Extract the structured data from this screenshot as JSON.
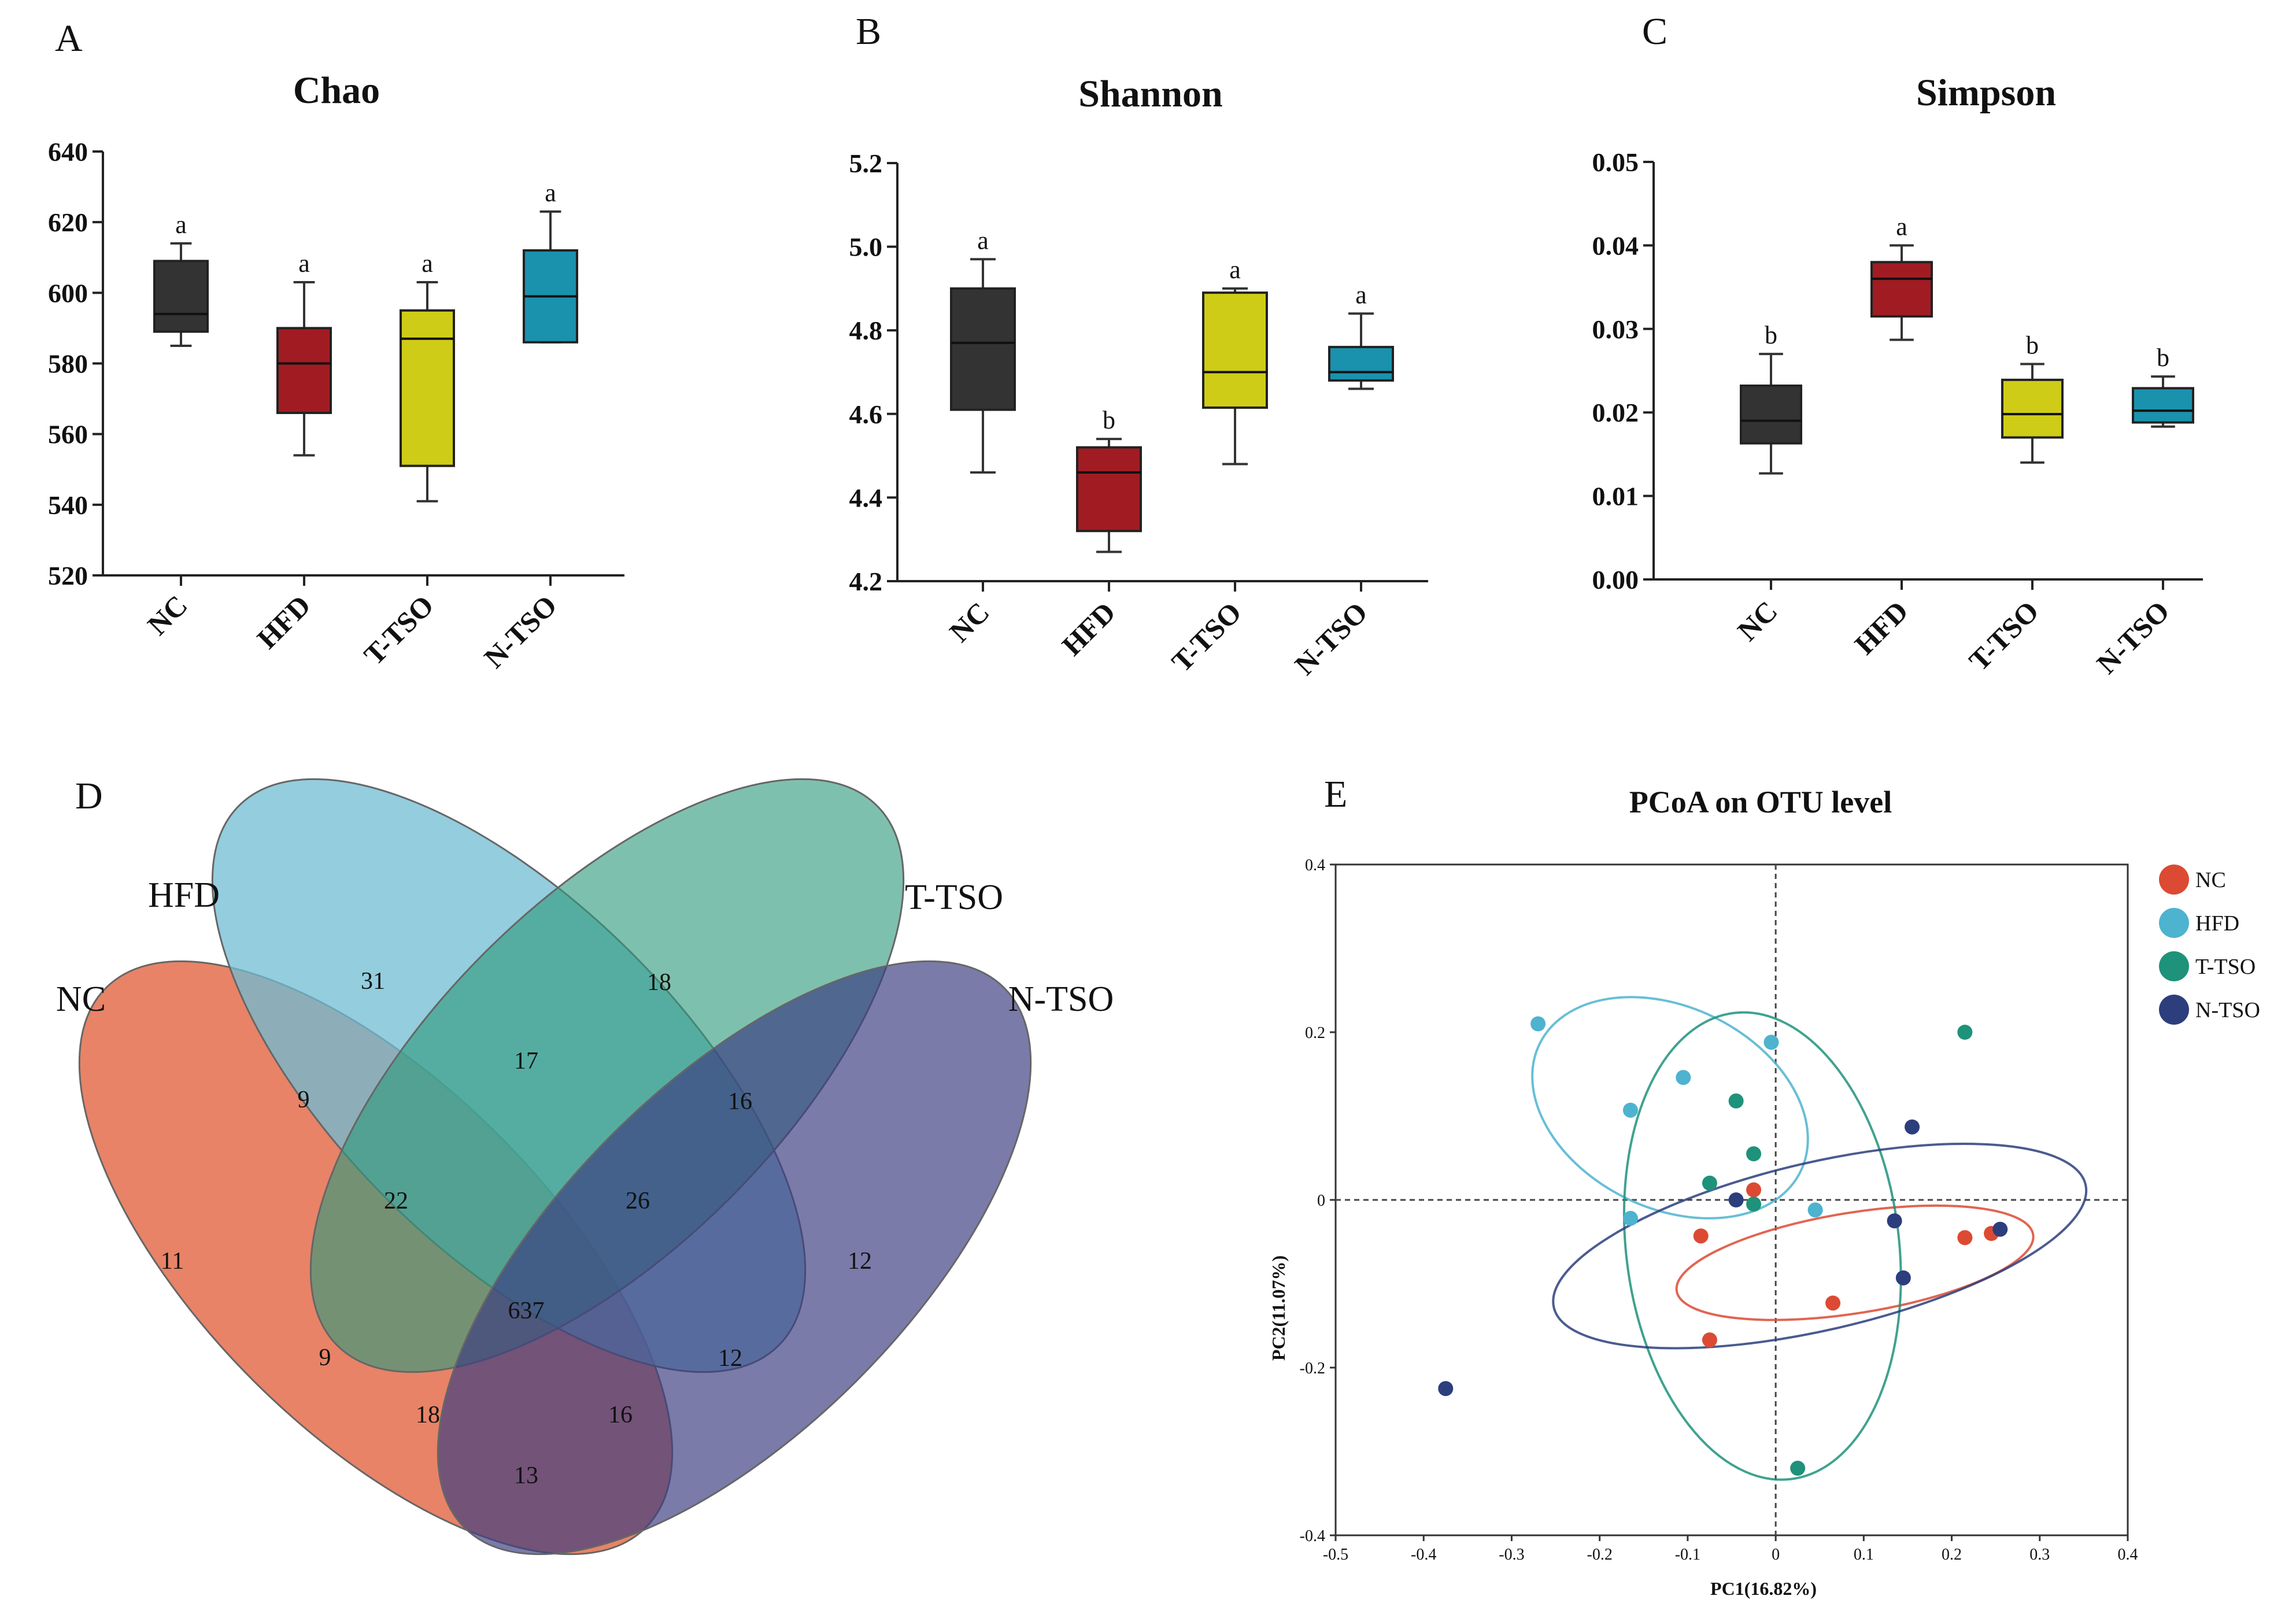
{
  "chart_data": [
    {
      "panel": "A",
      "type": "box",
      "title": "Chao",
      "categories": [
        "NC",
        "HFD",
        "T-TSO",
        "N-TSO"
      ],
      "ylim": [
        520,
        640
      ],
      "yticks": [
        520,
        540,
        560,
        580,
        600,
        620,
        640
      ],
      "boxes": [
        {
          "min": 585,
          "q1": 589,
          "median": 594,
          "q3": 609,
          "max": 614,
          "color": "#333333",
          "sig": "a"
        },
        {
          "min": 554,
          "q1": 566,
          "median": 580,
          "q3": 590,
          "max": 603,
          "color": "#a01c22",
          "sig": "a"
        },
        {
          "min": 541,
          "q1": 551,
          "median": 587,
          "q3": 595,
          "max": 603,
          "color": "#cfcc17",
          "sig": "a"
        },
        {
          "min": 586,
          "q1": 586,
          "median": 599,
          "q3": 612,
          "max": 623,
          "color": "#1a92ad",
          "sig": "a"
        }
      ]
    },
    {
      "panel": "B",
      "type": "box",
      "title": "Shannon",
      "categories": [
        "NC",
        "HFD",
        "T-TSO",
        "N-TSO"
      ],
      "ylim": [
        4.2,
        5.2
      ],
      "yticks": [
        "4.2",
        "4.4",
        "4.6",
        "4.8",
        "5.0",
        "5.2"
      ],
      "boxes": [
        {
          "min": 4.46,
          "q1": 4.61,
          "median": 4.77,
          "q3": 4.9,
          "max": 4.97,
          "color": "#333333",
          "sig": "a"
        },
        {
          "min": 4.27,
          "q1": 4.32,
          "median": 4.46,
          "q3": 4.52,
          "max": 4.54,
          "color": "#a01c22",
          "sig": "b"
        },
        {
          "min": 4.48,
          "q1": 4.615,
          "median": 4.7,
          "q3": 4.89,
          "max": 4.9,
          "color": "#cfcc17",
          "sig": "a"
        },
        {
          "min": 4.66,
          "q1": 4.68,
          "median": 4.7,
          "q3": 4.76,
          "max": 4.84,
          "color": "#1a92ad",
          "sig": "a"
        }
      ]
    },
    {
      "panel": "C",
      "type": "box",
      "title": "Simpson",
      "categories": [
        "NC",
        "HFD",
        "T-TSO",
        "N-TSO"
      ],
      "ylim": [
        0.0,
        0.05
      ],
      "yticks": [
        "0.00",
        "0.01",
        "0.02",
        "0.03",
        "0.04",
        "0.05"
      ],
      "boxes": [
        {
          "min": 0.0127,
          "q1": 0.0163,
          "median": 0.019,
          "q3": 0.0232,
          "max": 0.027,
          "color": "#333333",
          "sig": "b"
        },
        {
          "min": 0.0287,
          "q1": 0.0315,
          "median": 0.036,
          "q3": 0.038,
          "max": 0.04,
          "color": "#a01c22",
          "sig": "a"
        },
        {
          "min": 0.014,
          "q1": 0.017,
          "median": 0.0198,
          "q3": 0.0239,
          "max": 0.0258,
          "color": "#cfcc17",
          "sig": "b"
        },
        {
          "min": 0.0183,
          "q1": 0.0188,
          "median": 0.0202,
          "q3": 0.0229,
          "max": 0.0243,
          "color": "#1a92ad",
          "sig": "b"
        }
      ]
    },
    {
      "panel": "D",
      "type": "venn",
      "sets": [
        {
          "name": "NC",
          "color": "#e05a34"
        },
        {
          "name": "HFD",
          "color": "#6fbcd3"
        },
        {
          "name": "T-TSO",
          "color": "#2f9a7c"
        },
        {
          "name": "N-TSO",
          "color": "#3b3d80"
        }
      ],
      "regions": [
        {
          "sets": "NC",
          "value": 11
        },
        {
          "sets": "HFD",
          "value": 31
        },
        {
          "sets": "T-TSO",
          "value": 18
        },
        {
          "sets": "N-TSO",
          "value": 12
        },
        {
          "sets": "NC,HFD",
          "value": 9
        },
        {
          "sets": "HFD,T-TSO",
          "value": 17
        },
        {
          "sets": "T-TSO,N-TSO",
          "value": 16
        },
        {
          "sets": "NC,HFD,T-TSO",
          "value": 22
        },
        {
          "sets": "HFD,T-TSO,N-TSO",
          "value": 26
        },
        {
          "sets": "NC,HFD,T-TSO,N-TSO",
          "value": 637
        },
        {
          "sets": "NC,T-TSO",
          "value": 9
        },
        {
          "sets": "HFD,N-TSO",
          "value": 12
        },
        {
          "sets": "NC,T-TSO,N-TSO",
          "value": 18
        },
        {
          "sets": "NC,HFD,N-TSO",
          "value": 16
        },
        {
          "sets": "NC,N-TSO",
          "value": 13
        }
      ]
    },
    {
      "panel": "E",
      "type": "scatter",
      "title": "PCoA on OTU level",
      "xlabel": "PC1(16.82%)",
      "ylabel": "PC2(11.07%)",
      "xlim": [
        -0.5,
        0.4
      ],
      "ylim": [
        -0.4,
        0.4
      ],
      "xticks": [
        "-0.5",
        "-0.4",
        "-0.3",
        "-0.2",
        "-0.1",
        "0",
        "0.1",
        "0.2",
        "0.3",
        "0.4"
      ],
      "yticks": [
        "-0.4",
        "-0.2",
        "0",
        "0.2",
        "0.4"
      ],
      "legend": "top-right",
      "series": [
        {
          "name": "NC",
          "color": "#dc4a33",
          "points": [
            [
              -0.085,
              -0.043
            ],
            [
              -0.075,
              -0.167
            ],
            [
              -0.025,
              0.012
            ],
            [
              0.065,
              -0.123
            ],
            [
              0.215,
              -0.045
            ],
            [
              0.245,
              -0.04
            ]
          ],
          "ellipse": {
            "cx": 0.09,
            "cy": -0.075,
            "rx": 0.205,
            "ry": 0.06,
            "angle_deg": 9
          }
        },
        {
          "name": "HFD",
          "color": "#4db3cf",
          "points": [
            [
              -0.27,
              0.21
            ],
            [
              -0.165,
              0.107
            ],
            [
              -0.105,
              0.146
            ],
            [
              -0.165,
              -0.022
            ],
            [
              -0.005,
              0.188
            ],
            [
              0.045,
              -0.012
            ]
          ],
          "ellipse": {
            "cx": -0.12,
            "cy": 0.11,
            "rx": 0.165,
            "ry": 0.12,
            "angle_deg": -26
          }
        },
        {
          "name": "T-TSO",
          "color": "#1e927a",
          "points": [
            [
              -0.045,
              0.118
            ],
            [
              -0.075,
              0.02
            ],
            [
              -0.025,
              0.055
            ],
            [
              -0.025,
              -0.005
            ],
            [
              0.215,
              0.2
            ],
            [
              0.025,
              -0.32
            ]
          ],
          "ellipse": {
            "cx": -0.015,
            "cy": -0.055,
            "rx": 0.155,
            "ry": 0.28,
            "angle_deg": 7
          }
        },
        {
          "name": "N-TSO",
          "color": "#2c3e7c",
          "points": [
            [
              -0.375,
              -0.225
            ],
            [
              -0.045,
              0.0
            ],
            [
              0.155,
              0.087
            ],
            [
              0.135,
              -0.025
            ],
            [
              0.145,
              -0.093
            ],
            [
              0.255,
              -0.035
            ]
          ],
          "ellipse": {
            "cx": 0.05,
            "cy": -0.055,
            "rx": 0.31,
            "ry": 0.1,
            "angle_deg": 13
          }
        }
      ]
    }
  ]
}
